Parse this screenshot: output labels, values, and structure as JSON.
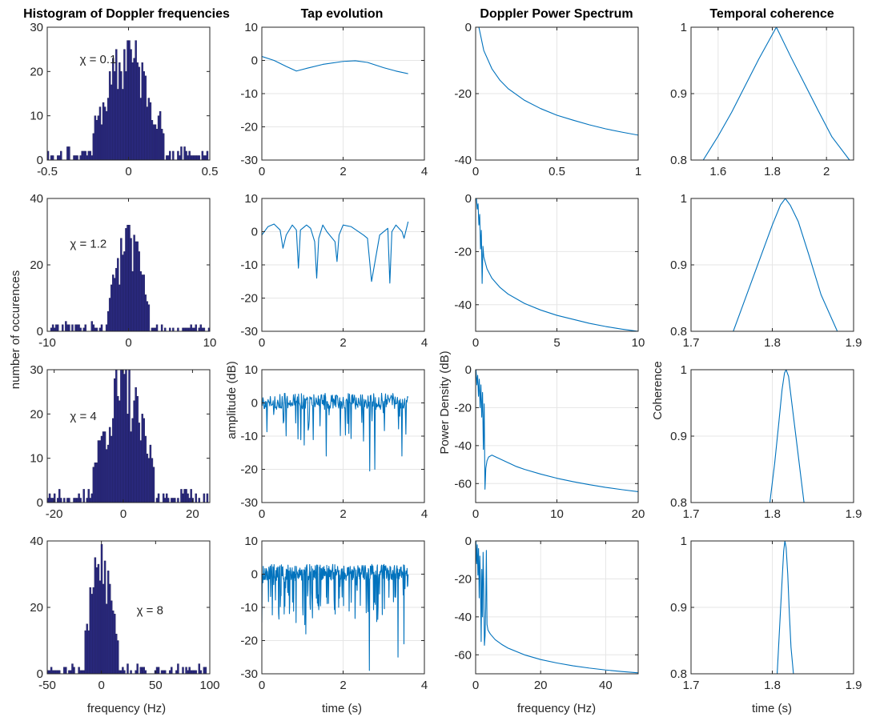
{
  "figure": {
    "column_titles": [
      "Histogram of Doppler frequencies",
      "Tap evolution",
      "Doppler Power Spectrum",
      "Temporal coherence"
    ],
    "ylabels": [
      "number of occurences",
      "amplitude (dB)",
      "Power Density (dB)",
      "Coherence"
    ],
    "xlabels": [
      "frequency (Hz)",
      "time (s)",
      "frequency (Hz)",
      "time (s)"
    ],
    "colors": {
      "line": "#0072BD",
      "bar_fill": "#2b2a83",
      "bar_edge": "#1a1a4e",
      "grid": "#e6e6e6",
      "axis": "#262626"
    }
  },
  "chart_data": [
    {
      "type": "bar",
      "id": "hist-0",
      "annotation": "χ = 0.1",
      "xlim": [
        -0.5,
        0.5
      ],
      "ylim": [
        0,
        30
      ],
      "xticks": [
        -0.5,
        0,
        0.5
      ],
      "xticklabels": [
        "-0.5",
        "0",
        "0.5"
      ],
      "yticks": [
        0,
        10,
        20,
        30
      ],
      "yticklabels": [
        "0",
        "10",
        "20",
        "30"
      ],
      "dist": {
        "center": 0.0,
        "sigma": 0.12,
        "peak": 27,
        "nbins": 100,
        "seed": 11
      }
    },
    {
      "type": "line",
      "id": "tap-0",
      "xlim": [
        0,
        4
      ],
      "ylim": [
        -30,
        10
      ],
      "xticks": [
        0,
        2,
        4
      ],
      "xticklabels": [
        "0",
        "2",
        "4"
      ],
      "yticks": [
        -30,
        -20,
        -10,
        0,
        10
      ],
      "yticklabels": [
        "-30",
        "-20",
        "-10",
        "0",
        "10"
      ],
      "x": [
        0,
        0.3,
        0.6,
        0.85,
        1.1,
        1.5,
        2.0,
        2.3,
        2.6,
        3.0,
        3.3,
        3.6
      ],
      "y": [
        1.2,
        0.0,
        -1.8,
        -3.2,
        -2.4,
        -1.2,
        -0.3,
        -0.1,
        -0.6,
        -2.2,
        -3.2,
        -4.0
      ]
    },
    {
      "type": "line",
      "id": "dps-0",
      "xlim": [
        0,
        1
      ],
      "ylim": [
        -40,
        0
      ],
      "xticks": [
        0,
        0.5,
        1
      ],
      "xticklabels": [
        "0",
        "0.5",
        "1"
      ],
      "yticks": [
        -40,
        -20,
        0
      ],
      "yticklabels": [
        "-40",
        "-20",
        "0"
      ],
      "x": [
        0.02,
        0.05,
        0.1,
        0.15,
        0.2,
        0.3,
        0.4,
        0.5,
        0.6,
        0.7,
        0.8,
        0.9,
        1.0
      ],
      "y": [
        0,
        -7,
        -12.5,
        -16,
        -18.5,
        -22,
        -24.5,
        -26.5,
        -28,
        -29.4,
        -30.6,
        -31.6,
        -32.5
      ]
    },
    {
      "type": "line",
      "id": "coh-0",
      "xlim": [
        1.5,
        2.1
      ],
      "ylim": [
        0.8,
        1.0
      ],
      "xticks": [
        1.6,
        1.8,
        2.0
      ],
      "xticklabels": [
        "1.6",
        "1.8",
        "2"
      ],
      "yticks": [
        0.8,
        0.9,
        1.0
      ],
      "yticklabels": [
        "0.8",
        "0.9",
        "1"
      ],
      "x": [
        1.545,
        1.6,
        1.65,
        1.7,
        1.75,
        1.815,
        1.87,
        1.92,
        1.97,
        2.02,
        2.085
      ],
      "y": [
        0.8,
        0.836,
        0.872,
        0.912,
        0.952,
        1.0,
        0.954,
        0.914,
        0.874,
        0.835,
        0.8
      ]
    },
    {
      "type": "bar",
      "id": "hist-1",
      "annotation": "χ = 1.2",
      "xlim": [
        -10,
        10
      ],
      "ylim": [
        0,
        40
      ],
      "xticks": [
        -10,
        0,
        10
      ],
      "xticklabels": [
        "-10",
        "0",
        "10"
      ],
      "yticks": [
        0,
        20,
        40
      ],
      "yticklabels": [
        "0",
        "20",
        "40"
      ],
      "dist": {
        "center": 0.0,
        "sigma": 1.4,
        "peak": 32,
        "nbins": 100,
        "seed": 23
      }
    },
    {
      "type": "line",
      "id": "tap-1",
      "xlim": [
        0,
        4
      ],
      "ylim": [
        -30,
        10
      ],
      "xticks": [
        0,
        2,
        4
      ],
      "xticklabels": [
        "0",
        "2",
        "4"
      ],
      "yticks": [
        -30,
        -20,
        -10,
        0,
        10
      ],
      "yticklabels": [
        "-30",
        "-20",
        "-10",
        "0",
        "10"
      ],
      "x": [
        0,
        0.15,
        0.3,
        0.45,
        0.52,
        0.6,
        0.75,
        0.85,
        0.9,
        0.95,
        1.1,
        1.2,
        1.3,
        1.35,
        1.4,
        1.5,
        1.6,
        1.8,
        1.85,
        1.9,
        2.0,
        2.2,
        2.5,
        2.6,
        2.7,
        2.9,
        3.1,
        3.15,
        3.2,
        3.3,
        3.45,
        3.5,
        3.6
      ],
      "y": [
        -1,
        1.5,
        2.3,
        0.5,
        -5,
        -1,
        2,
        0.5,
        -11,
        0.5,
        2,
        1,
        -3,
        -14,
        -2,
        2,
        0,
        -3,
        -9,
        -1,
        2,
        1.5,
        -1,
        -2,
        -15,
        -1,
        1,
        -15.5,
        0,
        2,
        0,
        -2,
        3
      ]
    },
    {
      "type": "line",
      "id": "dps-1",
      "xlim": [
        0,
        10
      ],
      "ylim": [
        -50,
        0
      ],
      "xticks": [
        0,
        5,
        10
      ],
      "xticklabels": [
        "0",
        "5",
        "10"
      ],
      "yticks": [
        -40,
        -20,
        0
      ],
      "yticklabels": [
        "-40",
        "-20",
        "0"
      ],
      "x": [
        0.05,
        0.1,
        0.15,
        0.2,
        0.25,
        0.3,
        0.35,
        0.4,
        0.45,
        0.5,
        0.7,
        1.0,
        1.5,
        2.0,
        3.0,
        4.0,
        5.0,
        6.0,
        7.0,
        8.0,
        9.0,
        10.0
      ],
      "y": [
        0,
        -4,
        -2,
        -10,
        -6,
        -19,
        -12,
        -32,
        -18,
        -22,
        -26.5,
        -30,
        -33.5,
        -36,
        -39.5,
        -42,
        -44,
        -45.5,
        -47,
        -48.2,
        -49.2,
        -50
      ]
    },
    {
      "type": "line",
      "id": "coh-1",
      "xlim": [
        1.7,
        1.9
      ],
      "ylim": [
        0.8,
        1.0
      ],
      "xticks": [
        1.7,
        1.8,
        1.9
      ],
      "xticklabels": [
        "1.7",
        "1.8",
        "1.9"
      ],
      "yticks": [
        0.8,
        0.9,
        1.0
      ],
      "yticklabels": [
        "0.8",
        "0.9",
        "1"
      ],
      "x": [
        1.752,
        1.77,
        1.785,
        1.8,
        1.81,
        1.816,
        1.822,
        1.832,
        1.845,
        1.86,
        1.88
      ],
      "y": [
        0.8,
        0.86,
        0.91,
        0.96,
        0.99,
        1.0,
        0.99,
        0.965,
        0.915,
        0.855,
        0.8
      ]
    },
    {
      "type": "bar",
      "id": "hist-2",
      "annotation": "χ = 4",
      "xlim": [
        -22,
        25
      ],
      "ylim": [
        0,
        30
      ],
      "xticks": [
        -20,
        0,
        20
      ],
      "xticklabels": [
        "-20",
        "0",
        "20"
      ],
      "yticks": [
        0,
        10,
        20,
        30
      ],
      "yticklabels": [
        "0",
        "10",
        "20",
        "30"
      ],
      "dist": {
        "center": 0.0,
        "sigma": 5.0,
        "peak": 30,
        "nbins": 100,
        "seed": 37
      }
    },
    {
      "type": "line",
      "id": "tap-2",
      "xlim": [
        0,
        4
      ],
      "ylim": [
        -30,
        10
      ],
      "xticks": [
        0,
        2,
        4
      ],
      "xticklabels": [
        "0",
        "2",
        "4"
      ],
      "yticks": [
        -30,
        -20,
        -10,
        0,
        10
      ],
      "yticklabels": [
        "-30",
        "-20",
        "-10",
        "0",
        "10"
      ],
      "noisy": {
        "n": 260,
        "tmax": 3.6,
        "base": 0,
        "amp": 3.5,
        "dip_prob": 0.12,
        "dip_depth": 8,
        "seed": 5,
        "spikes": [
          [
            1.58,
            -16
          ],
          [
            2.65,
            -20.5
          ],
          [
            2.78,
            -20
          ],
          [
            3.45,
            -16
          ]
        ]
      }
    },
    {
      "type": "line",
      "id": "dps-2",
      "xlim": [
        0,
        20
      ],
      "ylim": [
        -70,
        0
      ],
      "xticks": [
        0,
        10,
        20
      ],
      "xticklabels": [
        "0",
        "10",
        "20"
      ],
      "yticks": [
        -60,
        -40,
        -20,
        0
      ],
      "yticklabels": [
        "-60",
        "-40",
        "-20",
        "0"
      ],
      "x": [
        0.05,
        0.15,
        0.25,
        0.35,
        0.45,
        0.55,
        0.65,
        0.75,
        0.85,
        0.95,
        1.05,
        1.15,
        1.25,
        1.4,
        1.6,
        2.0,
        3.0,
        4.0,
        5.0,
        6.0,
        8.0,
        10.0,
        12.0,
        14.0,
        16.0,
        18.0,
        20.0
      ],
      "y": [
        0,
        -8,
        -3,
        -14,
        -5,
        -20,
        -8,
        -25,
        -12,
        -42,
        -18,
        -63,
        -52,
        -48,
        -46,
        -45,
        -47,
        -49,
        -51,
        -52.5,
        -55,
        -57.2,
        -59,
        -60.6,
        -62,
        -63.2,
        -64.3
      ]
    },
    {
      "type": "line",
      "id": "coh-2",
      "xlim": [
        1.7,
        1.9
      ],
      "ylim": [
        0.8,
        1.0
      ],
      "xticks": [
        1.7,
        1.8,
        1.9
      ],
      "xticklabels": [
        "1.7",
        "1.8",
        "1.9"
      ],
      "yticks": [
        0.8,
        0.9,
        1.0
      ],
      "yticklabels": [
        "0.8",
        "0.9",
        "1"
      ],
      "x": [
        1.797,
        1.803,
        1.808,
        1.812,
        1.815,
        1.817,
        1.82,
        1.824,
        1.829,
        1.834,
        1.839
      ],
      "y": [
        0.8,
        0.86,
        0.92,
        0.97,
        0.995,
        1.0,
        0.99,
        0.95,
        0.9,
        0.85,
        0.8
      ]
    },
    {
      "type": "bar",
      "id": "hist-3",
      "annotation": "χ = 8",
      "xlim": [
        -50,
        100
      ],
      "ylim": [
        0,
        40
      ],
      "xticks": [
        -50,
        0,
        50,
        100
      ],
      "xticklabels": [
        "-50",
        "0",
        "50",
        "100"
      ],
      "yticks": [
        0,
        20,
        40
      ],
      "yticklabels": [
        "0",
        "20",
        "40"
      ],
      "dist": {
        "center": 0.0,
        "sigma": 9.0,
        "peak": 39,
        "nbins": 100,
        "seed": 53,
        "outliers": [
          [
            52,
            1
          ],
          [
            80,
            1
          ],
          [
            37,
            1
          ]
        ]
      }
    },
    {
      "type": "line",
      "id": "tap-3",
      "xlim": [
        0,
        4
      ],
      "ylim": [
        -30,
        10
      ],
      "xticks": [
        0,
        2,
        4
      ],
      "xticklabels": [
        "0",
        "2",
        "4"
      ],
      "yticks": [
        -30,
        -20,
        -10,
        0,
        10
      ],
      "yticklabels": [
        "-30",
        "-20",
        "-10",
        "0",
        "10"
      ],
      "noisy": {
        "n": 420,
        "tmax": 3.6,
        "base": 0,
        "amp": 3.5,
        "dip_prob": 0.2,
        "dip_depth": 10,
        "seed": 9,
        "spikes": [
          [
            1.08,
            -18
          ],
          [
            2.65,
            -29
          ],
          [
            3.35,
            -25
          ],
          [
            3.5,
            -21
          ]
        ]
      }
    },
    {
      "type": "line",
      "id": "dps-3",
      "xlim": [
        0,
        50
      ],
      "ylim": [
        -70,
        0
      ],
      "xticks": [
        0,
        20,
        40
      ],
      "xticklabels": [
        "0",
        "20",
        "40"
      ],
      "yticks": [
        -60,
        -40,
        -20,
        0
      ],
      "yticklabels": [
        "-60",
        "-40",
        "-20",
        "0"
      ],
      "x": [
        0.1,
        0.3,
        0.5,
        0.7,
        0.9,
        1.1,
        1.3,
        1.5,
        1.7,
        1.9,
        2.1,
        2.3,
        2.5,
        2.7,
        2.9,
        3.1,
        3.3,
        3.5,
        3.8,
        4.5,
        6,
        8,
        10,
        15,
        20,
        25,
        30,
        35,
        40,
        45,
        50
      ],
      "y": [
        0,
        -12,
        -2,
        -18,
        -4,
        -30,
        -8,
        -22,
        -53,
        -15,
        -40,
        -6,
        -25,
        -55,
        -50,
        -35,
        -5,
        -44,
        -47,
        -49,
        -52,
        -54.5,
        -56.5,
        -60,
        -62.5,
        -64.3,
        -65.8,
        -67,
        -68,
        -68.8,
        -69.5
      ]
    },
    {
      "type": "line",
      "id": "coh-3",
      "xlim": [
        1.7,
        1.9
      ],
      "ylim": [
        0.8,
        1.0
      ],
      "xticks": [
        1.7,
        1.8,
        1.9
      ],
      "xticklabels": [
        "1.7",
        "1.8",
        "1.9"
      ],
      "yticks": [
        0.8,
        0.9,
        1.0
      ],
      "yticklabels": [
        "0.8",
        "0.9",
        "1"
      ],
      "x": [
        1.806,
        1.809,
        1.812,
        1.814,
        1.8155,
        1.817,
        1.819,
        1.821,
        1.823,
        1.826
      ],
      "y": [
        0.8,
        0.87,
        0.94,
        0.985,
        1.0,
        0.99,
        0.95,
        0.89,
        0.84,
        0.8
      ]
    }
  ]
}
